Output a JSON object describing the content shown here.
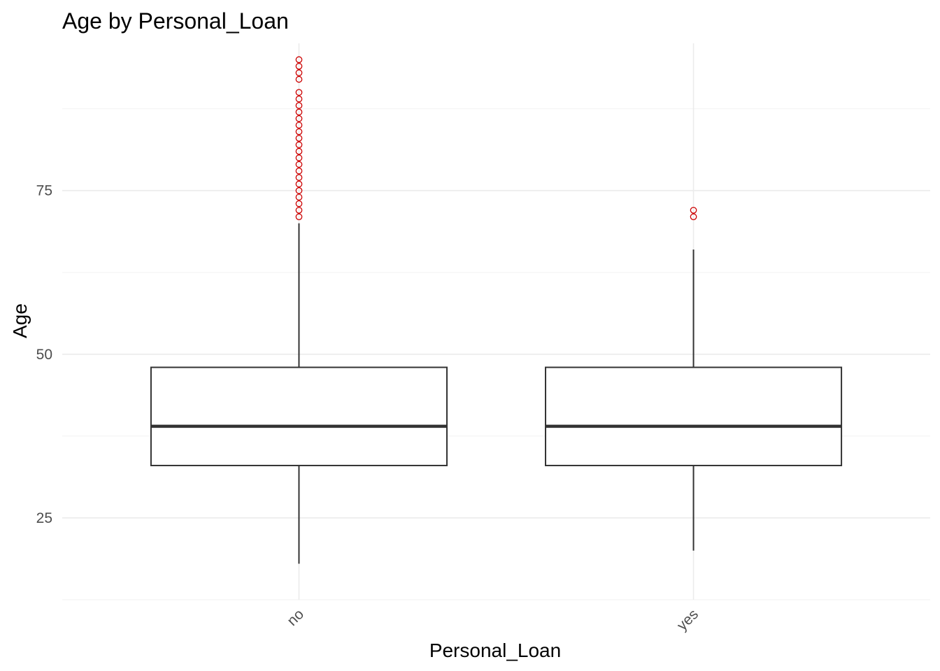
{
  "chart_data": {
    "type": "box",
    "title": "Age by Personal_Loan",
    "xlabel": "Personal_Loan",
    "ylabel": "Age",
    "categories": [
      "no",
      "yes"
    ],
    "ylim": [
      12.5,
      97.5
    ],
    "yticks": [
      25,
      50,
      75
    ],
    "grid": true,
    "x_tick_rotation": -45,
    "outlier_color": "#cc0000",
    "box_color": "#333333",
    "boxes": [
      {
        "category": "no",
        "min": 18,
        "q1": 33,
        "median": 39,
        "q3": 48,
        "max": 70,
        "outliers": [
          71,
          72,
          73,
          74,
          75,
          76,
          77,
          78,
          79,
          80,
          81,
          82,
          83,
          84,
          85,
          86,
          87,
          88,
          89,
          90,
          92,
          93,
          94,
          95
        ]
      },
      {
        "category": "yes",
        "min": 20,
        "q1": 33,
        "median": 39,
        "q3": 48,
        "max": 66,
        "outliers": [
          71,
          72
        ]
      }
    ]
  }
}
